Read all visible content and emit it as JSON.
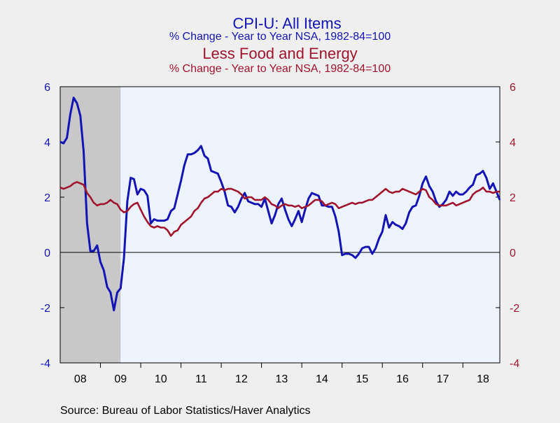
{
  "colors": {
    "background": "#efefef",
    "plot_bg": "#eef4ff",
    "recession": "#c8c8c8",
    "series_a": "#1414b4",
    "series_b": "#a0142d",
    "axis": "#000000"
  },
  "header": {
    "title_a": "CPI-U: All Items",
    "subtitle_a": "% Change - Year to Year    NSA, 1982-84=100",
    "title_b": "Less Food and Energy",
    "subtitle_b": "% Change - Year to Year    NSA, 1982-84=100"
  },
  "source": "Source:  Bureau of Labor Statistics/Haver Analytics",
  "chart_data": {
    "type": "line",
    "x_unit": "year",
    "x_range": [
      2008.0,
      2018.917
    ],
    "ylim": [
      -4,
      6
    ],
    "yticks": [
      -4,
      -2,
      0,
      2,
      4,
      6
    ],
    "y_tick_labels": [
      "-4",
      "-2",
      "0",
      "2",
      "4",
      "6"
    ],
    "x_tick_labels": [
      "08",
      "09",
      "10",
      "11",
      "12",
      "13",
      "14",
      "15",
      "16",
      "17",
      "18"
    ],
    "grid": false,
    "zero_line": true,
    "shaded_regions": [
      [
        2008.0,
        2009.5
      ]
    ],
    "series": [
      {
        "color": "#1414b4",
        "axis": "left",
        "x": [
          2008.0,
          2008.083,
          2008.167,
          2008.25,
          2008.333,
          2008.417,
          2008.5,
          2008.583,
          2008.667,
          2008.75,
          2008.833,
          2008.917,
          2009.0,
          2009.083,
          2009.167,
          2009.25,
          2009.333,
          2009.417,
          2009.5,
          2009.583,
          2009.667,
          2009.75,
          2009.833,
          2009.917,
          2010.0,
          2010.083,
          2010.167,
          2010.25,
          2010.333,
          2010.417,
          2010.5,
          2010.583,
          2010.667,
          2010.75,
          2010.833,
          2010.917,
          2011.0,
          2011.083,
          2011.167,
          2011.25,
          2011.333,
          2011.417,
          2011.5,
          2011.583,
          2011.667,
          2011.75,
          2011.833,
          2011.917,
          2012.0,
          2012.083,
          2012.167,
          2012.25,
          2012.333,
          2012.417,
          2012.5,
          2012.583,
          2012.667,
          2012.75,
          2012.833,
          2012.917,
          2013.0,
          2013.083,
          2013.167,
          2013.25,
          2013.333,
          2013.417,
          2013.5,
          2013.583,
          2013.667,
          2013.75,
          2013.833,
          2013.917,
          2014.0,
          2014.083,
          2014.167,
          2014.25,
          2014.333,
          2014.417,
          2014.5,
          2014.583,
          2014.667,
          2014.75,
          2014.833,
          2014.917,
          2015.0,
          2015.083,
          2015.167,
          2015.25,
          2015.333,
          2015.417,
          2015.5,
          2015.583,
          2015.667,
          2015.75,
          2015.833,
          2015.917,
          2016.0,
          2016.083,
          2016.167,
          2016.25,
          2016.333,
          2016.417,
          2016.5,
          2016.583,
          2016.667,
          2016.75,
          2016.833,
          2016.917,
          2017.0,
          2017.083,
          2017.167,
          2017.25,
          2017.333,
          2017.417,
          2017.5,
          2017.583,
          2017.667,
          2017.75,
          2017.833,
          2017.917,
          2018.0,
          2018.083,
          2018.167,
          2018.25,
          2018.333,
          2018.417,
          2018.5,
          2018.583,
          2018.667,
          2018.75,
          2018.833,
          2018.917
        ],
        "y": [
          4.0,
          3.95,
          4.15,
          5.0,
          5.6,
          5.4,
          4.95,
          3.65,
          1.05,
          0.05,
          0.05,
          0.25,
          -0.35,
          -0.65,
          -1.25,
          -1.45,
          -2.1,
          -1.45,
          -1.3,
          -0.2,
          1.85,
          2.7,
          2.65,
          2.1,
          2.3,
          2.25,
          2.05,
          1.05,
          1.2,
          1.15,
          1.15,
          1.15,
          1.2,
          1.5,
          1.6,
          2.1,
          2.6,
          3.15,
          3.55,
          3.55,
          3.6,
          3.7,
          3.85,
          3.5,
          3.4,
          2.95,
          2.9,
          2.85,
          2.55,
          2.2,
          1.7,
          1.65,
          1.45,
          1.65,
          1.95,
          2.15,
          1.85,
          1.8,
          1.75,
          1.75,
          1.65,
          1.95,
          1.5,
          1.05,
          1.35,
          1.75,
          1.95,
          1.55,
          1.2,
          0.95,
          1.2,
          1.5,
          1.1,
          1.55,
          1.95,
          2.15,
          2.1,
          2.05,
          1.7,
          1.7,
          1.65,
          1.65,
          1.3,
          0.75,
          -0.1,
          -0.05,
          -0.05,
          -0.1,
          -0.2,
          -0.05,
          0.15,
          0.2,
          0.2,
          -0.05,
          0.15,
          0.5,
          0.75,
          1.35,
          0.9,
          1.1,
          1.0,
          0.95,
          0.85,
          1.05,
          1.45,
          1.65,
          1.7,
          2.05,
          2.5,
          2.75,
          2.4,
          2.2,
          1.85,
          1.65,
          1.75,
          1.9,
          2.2,
          2.05,
          2.2,
          2.1,
          2.1,
          2.2,
          2.35,
          2.45,
          2.8,
          2.85,
          2.95,
          2.7,
          2.3,
          2.5,
          2.2,
          1.9
        ]
      },
      {
        "color": "#a0142d",
        "axis": "right",
        "x": [
          2008.0,
          2008.083,
          2008.167,
          2008.25,
          2008.333,
          2008.417,
          2008.5,
          2008.583,
          2008.667,
          2008.75,
          2008.833,
          2008.917,
          2009.0,
          2009.083,
          2009.167,
          2009.25,
          2009.333,
          2009.417,
          2009.5,
          2009.583,
          2009.667,
          2009.75,
          2009.833,
          2009.917,
          2010.0,
          2010.083,
          2010.167,
          2010.25,
          2010.333,
          2010.417,
          2010.5,
          2010.583,
          2010.667,
          2010.75,
          2010.833,
          2010.917,
          2011.0,
          2011.083,
          2011.167,
          2011.25,
          2011.333,
          2011.417,
          2011.5,
          2011.583,
          2011.667,
          2011.75,
          2011.833,
          2011.917,
          2012.0,
          2012.083,
          2012.167,
          2012.25,
          2012.333,
          2012.417,
          2012.5,
          2012.583,
          2012.667,
          2012.75,
          2012.833,
          2012.917,
          2013.0,
          2013.083,
          2013.167,
          2013.25,
          2013.333,
          2013.417,
          2013.5,
          2013.583,
          2013.667,
          2013.75,
          2013.833,
          2013.917,
          2014.0,
          2014.083,
          2014.167,
          2014.25,
          2014.333,
          2014.417,
          2014.5,
          2014.583,
          2014.667,
          2014.75,
          2014.833,
          2014.917,
          2015.0,
          2015.083,
          2015.167,
          2015.25,
          2015.333,
          2015.417,
          2015.5,
          2015.583,
          2015.667,
          2015.75,
          2015.833,
          2015.917,
          2016.0,
          2016.083,
          2016.167,
          2016.25,
          2016.333,
          2016.417,
          2016.5,
          2016.583,
          2016.667,
          2016.75,
          2016.833,
          2016.917,
          2017.0,
          2017.083,
          2017.167,
          2017.25,
          2017.333,
          2017.417,
          2017.5,
          2017.583,
          2017.667,
          2017.75,
          2017.833,
          2017.917,
          2018.0,
          2018.083,
          2018.167,
          2018.25,
          2018.333,
          2018.417,
          2018.5,
          2018.583,
          2018.667,
          2018.75,
          2018.833,
          2018.917
        ],
        "y": [
          2.35,
          2.3,
          2.35,
          2.4,
          2.5,
          2.55,
          2.5,
          2.45,
          2.15,
          2.0,
          1.8,
          1.7,
          1.75,
          1.75,
          1.8,
          1.9,
          1.8,
          1.75,
          1.55,
          1.45,
          1.5,
          1.65,
          1.75,
          1.8,
          1.55,
          1.3,
          1.1,
          0.95,
          0.9,
          0.95,
          0.9,
          0.9,
          0.8,
          0.6,
          0.75,
          0.8,
          1.0,
          1.1,
          1.2,
          1.3,
          1.5,
          1.6,
          1.8,
          1.95,
          2.0,
          2.1,
          2.2,
          2.2,
          2.3,
          2.25,
          2.3,
          2.3,
          2.25,
          2.2,
          2.1,
          1.95,
          2.0,
          2.0,
          1.9,
          1.9,
          1.9,
          2.0,
          1.9,
          1.75,
          1.7,
          1.6,
          1.7,
          1.75,
          1.7,
          1.7,
          1.65,
          1.7,
          1.6,
          1.65,
          1.7,
          1.8,
          1.9,
          1.9,
          1.85,
          1.7,
          1.75,
          1.8,
          1.75,
          1.6,
          1.65,
          1.7,
          1.75,
          1.8,
          1.75,
          1.8,
          1.8,
          1.85,
          1.9,
          1.9,
          2.0,
          2.1,
          2.2,
          2.3,
          2.2,
          2.15,
          2.2,
          2.2,
          2.3,
          2.25,
          2.2,
          2.15,
          2.1,
          2.2,
          2.3,
          2.25,
          2.0,
          1.9,
          1.75,
          1.7,
          1.7,
          1.7,
          1.75,
          1.8,
          1.7,
          1.75,
          1.8,
          1.85,
          1.9,
          2.1,
          2.2,
          2.25,
          2.35,
          2.2,
          2.2,
          2.15,
          2.2,
          2.2
        ]
      }
    ]
  }
}
